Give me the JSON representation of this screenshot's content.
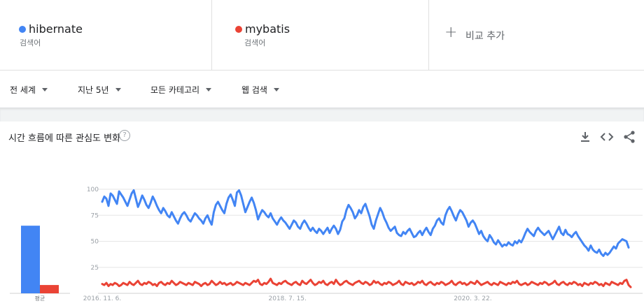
{
  "terms": [
    {
      "name": "hibernate",
      "sub": "검색어",
      "color": "#4285f4"
    },
    {
      "name": "mybatis",
      "sub": "검색어",
      "color": "#ea4335"
    }
  ],
  "add_term": {
    "plus": "+",
    "label": "비교 추가"
  },
  "filters": {
    "region": "전 세계",
    "period": "지난 5년",
    "category": "모든 카테고리",
    "search_type": "웹 검색"
  },
  "card": {
    "title": "시간 흐름에 따른 관심도 변화",
    "help": "?"
  },
  "icons": {
    "help": "question-circle-icon",
    "download": "download-icon",
    "embed": "code-icon",
    "share": "share-icon"
  },
  "chart_data": {
    "type": "line",
    "ylim": [
      0,
      100
    ],
    "yticks": [
      "25",
      "50",
      "75",
      "100"
    ],
    "xticks": [
      {
        "label": "2016. 11. 6.",
        "index": 0
      },
      {
        "label": "2018. 7. 15.",
        "index": 88
      },
      {
        "label": "2020. 3. 22.",
        "index": 176
      }
    ],
    "average": {
      "label": "평균",
      "values": [
        65,
        8
      ]
    },
    "series": [
      {
        "name": "hibernate",
        "color": "#4285f4",
        "values": [
          88,
          93,
          91,
          84,
          96,
          94,
          90,
          86,
          98,
          95,
          92,
          88,
          84,
          90,
          96,
          99,
          91,
          83,
          88,
          94,
          90,
          85,
          82,
          87,
          93,
          89,
          84,
          80,
          77,
          82,
          79,
          75,
          73,
          78,
          74,
          70,
          67,
          72,
          76,
          78,
          75,
          71,
          69,
          73,
          77,
          75,
          72,
          70,
          67,
          72,
          75,
          70,
          66,
          78,
          85,
          88,
          84,
          80,
          77,
          86,
          92,
          95,
          90,
          84,
          97,
          99,
          94,
          86,
          78,
          83,
          88,
          92,
          87,
          80,
          71,
          76,
          80,
          78,
          75,
          73,
          77,
          72,
          69,
          66,
          70,
          73,
          70,
          68,
          65,
          62,
          66,
          70,
          68,
          64,
          62,
          67,
          70,
          67,
          63,
          60,
          63,
          60,
          58,
          62,
          60,
          57,
          60,
          63,
          58,
          62,
          65,
          62,
          57,
          61,
          69,
          72,
          80,
          85,
          82,
          78,
          72,
          75,
          80,
          77,
          83,
          86,
          80,
          74,
          66,
          62,
          70,
          76,
          82,
          78,
          72,
          68,
          63,
          60,
          62,
          64,
          58,
          56,
          55,
          59,
          57,
          60,
          62,
          58,
          54,
          55,
          58,
          60,
          56,
          60,
          63,
          59,
          56,
          62,
          65,
          70,
          72,
          68,
          66,
          75,
          80,
          83,
          79,
          74,
          70,
          76,
          80,
          78,
          74,
          70,
          64,
          68,
          70,
          67,
          62,
          57,
          60,
          55,
          52,
          50,
          56,
          53,
          49,
          47,
          51,
          48,
          45,
          47,
          46,
          49,
          47,
          46,
          50,
          48,
          51,
          49,
          53,
          58,
          62,
          59,
          57,
          55,
          60,
          63,
          60,
          58,
          56,
          58,
          60,
          56,
          52,
          56,
          60,
          64,
          58,
          56,
          61,
          57,
          56,
          54,
          57,
          59,
          55,
          52,
          49,
          46,
          44,
          41,
          46,
          42,
          40,
          39,
          42,
          38,
          36,
          39,
          37,
          39,
          42,
          45,
          43,
          48,
          50,
          52,
          51,
          50,
          44
        ]
      },
      {
        "name": "mybatis",
        "color": "#ea4335",
        "values": [
          9,
          8,
          10,
          7,
          9,
          8,
          10,
          9,
          7,
          8,
          10,
          9,
          8,
          11,
          9,
          8,
          10,
          12,
          9,
          8,
          10,
          9,
          11,
          10,
          8,
          9,
          7,
          10,
          11,
          9,
          8,
          10,
          9,
          12,
          10,
          8,
          9,
          11,
          10,
          9,
          8,
          10,
          9,
          8,
          11,
          10,
          9,
          7,
          9,
          10,
          8,
          9,
          12,
          10,
          8,
          9,
          11,
          9,
          10,
          8,
          9,
          10,
          8,
          9,
          11,
          10,
          9,
          8,
          10,
          9,
          8,
          10,
          12,
          11,
          13,
          9,
          8,
          10,
          9,
          11,
          14,
          10,
          9,
          8,
          10,
          9,
          11,
          12,
          10,
          9,
          8,
          10,
          11,
          9,
          8,
          12,
          10,
          9,
          11,
          13,
          10,
          8,
          9,
          11,
          10,
          12,
          9,
          8,
          10,
          11,
          9,
          13,
          10,
          8,
          9,
          11,
          12,
          10,
          9,
          8,
          10,
          11,
          12,
          10,
          9,
          11,
          10,
          8,
          9,
          12,
          10,
          11,
          9,
          8,
          10,
          9,
          11,
          10,
          8,
          9,
          10,
          12,
          9,
          8,
          11,
          10,
          9,
          10,
          8,
          9,
          11,
          10,
          12,
          9,
          8,
          10,
          11,
          9,
          8,
          10,
          9,
          11,
          10,
          8,
          9,
          10,
          12,
          9,
          8,
          10,
          11,
          9,
          10,
          8,
          9,
          11,
          10,
          9,
          12,
          10,
          8,
          9,
          10,
          11,
          9,
          8,
          10,
          9,
          8,
          11,
          10,
          9,
          8,
          10,
          9,
          11,
          10,
          12,
          9,
          8,
          9,
          10,
          8,
          9,
          11,
          10,
          9,
          8,
          10,
          9,
          11,
          10,
          8,
          9,
          10,
          12,
          9,
          8,
          10,
          11,
          9,
          8,
          10,
          9,
          11,
          10,
          8,
          9,
          7,
          10,
          9,
          8,
          10,
          9,
          11,
          10,
          8,
          9,
          7,
          10,
          9,
          8,
          11,
          10,
          9,
          8,
          10,
          9,
          12,
          13,
          8,
          6
        ]
      }
    ]
  }
}
